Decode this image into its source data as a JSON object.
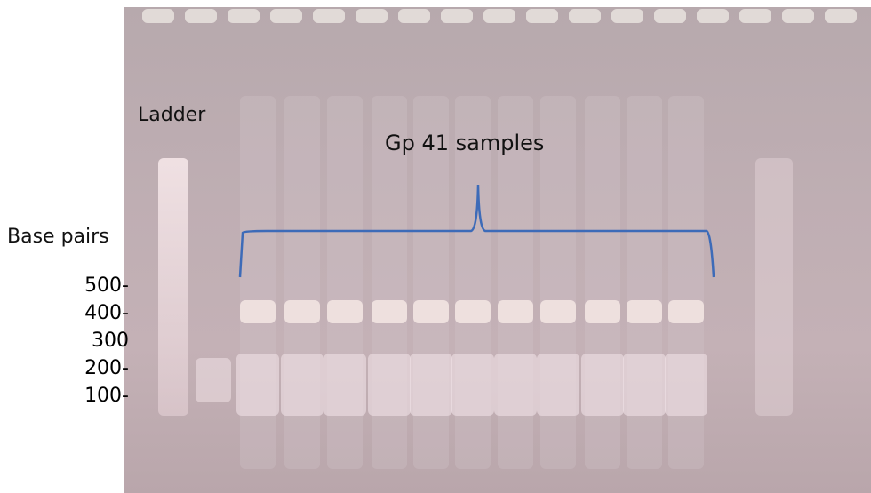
{
  "labels": {
    "ladder": "Ladder",
    "group": "Gp 41 samples",
    "axis_title": "Base pairs",
    "size_marks": [
      "500-",
      "400-",
      "300",
      "200-",
      "100-"
    ]
  }
}
